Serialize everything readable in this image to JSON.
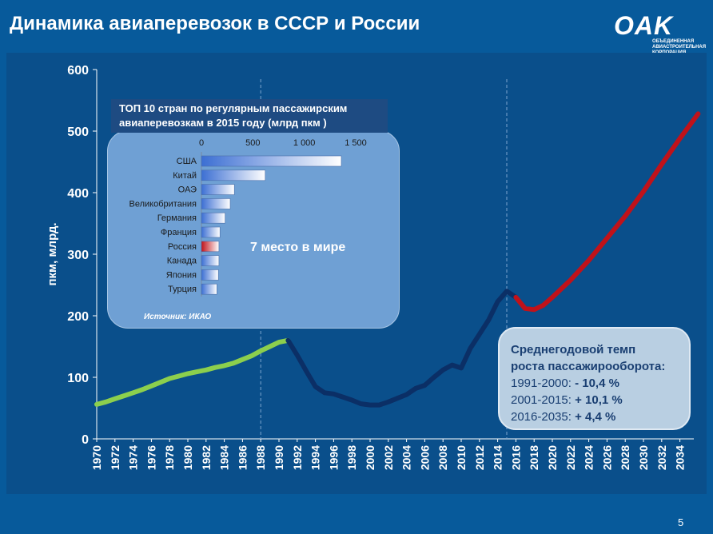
{
  "header": {
    "title": "Динамика авиаперевозок в СССР и России",
    "logo_main": "OAK",
    "logo_sub": "ОБЪЕДИНЕННАЯ АВИАСТРОИТЕЛЬНАЯ КОРПОРАЦИЯ"
  },
  "inset": {
    "title": "ТОП 10 стран по регулярным пассажирским авиаперевозкам в 2015 году (млрд пкм )",
    "rank_note": "7 место в мире",
    "source": "Источник: ИКАО"
  },
  "info_box": {
    "heading_line1": "Среднегодовой темп",
    "heading_line2": "роста пассажирооборота:",
    "rows": [
      {
        "period": "1991-2000:",
        "value": "- 10,4 %"
      },
      {
        "period": "2001-2015:",
        "value": "+ 10,1 %"
      },
      {
        "period": "2016-2035:",
        "value": "+ 4,4 %"
      }
    ]
  },
  "page_number": "5",
  "colors": {
    "background": "#075a9b",
    "ussr_line": "#8ccf4d",
    "russia_line": "#0b2f66",
    "forecast_line": "#c0121a",
    "russia_bar": "#c0121a",
    "bar": "#ffffff"
  },
  "chart_data": [
    {
      "type": "line",
      "ylabel": "пкм, млрд.",
      "xlabel": "",
      "ylim": [
        0,
        600
      ],
      "yticks": [
        0,
        100,
        200,
        300,
        400,
        500,
        600
      ],
      "xlim": [
        1970,
        2035
      ],
      "xticks": [
        "1970",
        "1972",
        "1974",
        "1976",
        "1978",
        "1980",
        "1982",
        "1984",
        "1986",
        "1988",
        "1990",
        "1992",
        "1994",
        "1996",
        "1998",
        "2000",
        "2002",
        "2004",
        "2006",
        "2008",
        "2010",
        "2012",
        "2014",
        "2016",
        "2018",
        "2020",
        "2022",
        "2024",
        "2026",
        "2028",
        "2030",
        "2032",
        "2034"
      ],
      "vertical_markers": [
        1988,
        2015
      ],
      "series": [
        {
          "segment": "ussr",
          "color": "#8ccf4d",
          "points": [
            [
              1970,
              56
            ],
            [
              1971,
              60
            ],
            [
              1972,
              65
            ],
            [
              1973,
              70
            ],
            [
              1974,
              75
            ],
            [
              1975,
              80
            ],
            [
              1976,
              86
            ],
            [
              1977,
              92
            ],
            [
              1978,
              98
            ],
            [
              1979,
              102
            ],
            [
              1980,
              106
            ],
            [
              1981,
              109
            ],
            [
              1982,
              112
            ],
            [
              1983,
              116
            ],
            [
              1984,
              119
            ],
            [
              1985,
              123
            ],
            [
              1986,
              129
            ],
            [
              1987,
              135
            ],
            [
              1988,
              143
            ],
            [
              1989,
              150
            ],
            [
              1990,
              157
            ],
            [
              1991,
              160
            ]
          ]
        },
        {
          "segment": "russia",
          "color": "#0b2f66",
          "points": [
            [
              1991,
              160
            ],
            [
              1992,
              136
            ],
            [
              1993,
              110
            ],
            [
              1994,
              85
            ],
            [
              1995,
              75
            ],
            [
              1996,
              73
            ],
            [
              1997,
              68
            ],
            [
              1998,
              63
            ],
            [
              1999,
              57
            ],
            [
              2000,
              55
            ],
            [
              2001,
              55
            ],
            [
              2002,
              60
            ],
            [
              2003,
              66
            ],
            [
              2004,
              72
            ],
            [
              2005,
              82
            ],
            [
              2006,
              87
            ],
            [
              2007,
              100
            ],
            [
              2008,
              112
            ],
            [
              2009,
              120
            ],
            [
              2010,
              115
            ],
            [
              2011,
              147
            ],
            [
              2012,
              170
            ],
            [
              2013,
              193
            ],
            [
              2014,
              223
            ],
            [
              2015,
              240
            ],
            [
              2016,
              230
            ]
          ]
        },
        {
          "segment": "forecast",
          "color": "#c0121a",
          "points": [
            [
              2016,
              230
            ],
            [
              2017,
              212
            ],
            [
              2018,
              210
            ],
            [
              2019,
              217
            ],
            [
              2020,
              230
            ],
            [
              2022,
              258
            ],
            [
              2024,
              290
            ],
            [
              2026,
              326
            ],
            [
              2028,
              362
            ],
            [
              2030,
              402
            ],
            [
              2032,
              446
            ],
            [
              2034,
              488
            ],
            [
              2036,
              528
            ]
          ]
        }
      ]
    },
    {
      "type": "bar",
      "title": "ТОП 10 стран по регулярным пассажирским авиаперевозкам в 2015 году (млрд пкм )",
      "orientation": "horizontal",
      "xlim": [
        0,
        1500
      ],
      "xticks": [
        "0",
        "500",
        "1 000",
        "1 500"
      ],
      "xtick_values": [
        0,
        500,
        1000,
        1500
      ],
      "categories": [
        "США",
        "Китай",
        "ОАЭ",
        "Великобритания",
        "Германия",
        "Франция",
        "Россия",
        "Канада",
        "Япония",
        "Турция"
      ],
      "values": [
        1360,
        620,
        320,
        280,
        230,
        180,
        170,
        170,
        165,
        150
      ],
      "highlight": "Россия"
    }
  ]
}
